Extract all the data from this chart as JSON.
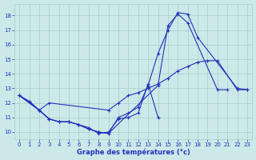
{
  "xlabel": "Graphe des températures (°c)",
  "xlim": [
    -0.5,
    23.5
  ],
  "ylim": [
    9.5,
    18.8
  ],
  "yticks": [
    10,
    11,
    12,
    13,
    14,
    15,
    16,
    17,
    18
  ],
  "xticks": [
    0,
    1,
    2,
    3,
    4,
    5,
    6,
    7,
    8,
    9,
    10,
    11,
    12,
    13,
    14,
    15,
    16,
    17,
    18,
    19,
    20,
    21,
    22,
    23
  ],
  "bg_color": "#cce8e8",
  "grid_color": "#aacccc",
  "line_color": "#2233bb",
  "line_width": 0.8,
  "marker_size": 3.5,
  "series": [
    {
      "x": [
        0,
        1,
        2,
        3,
        4,
        5,
        6,
        7,
        8,
        9,
        14,
        15,
        16,
        17,
        20,
        21
      ],
      "y": [
        12.5,
        12.1,
        11.5,
        10.9,
        10.7,
        10.7,
        10.5,
        10.2,
        10.0,
        9.9,
        13.2,
        17.3,
        18.1,
        17.5,
        12.9,
        12.9
      ]
    },
    {
      "x": [
        0,
        1,
        2,
        3,
        4,
        5,
        6,
        7,
        8,
        9,
        10,
        11,
        12,
        13,
        14,
        15,
        16,
        17,
        18,
        22,
        23
      ],
      "y": [
        12.5,
        12.1,
        11.5,
        10.9,
        10.7,
        10.7,
        10.5,
        10.2,
        10.0,
        9.9,
        11.0,
        11.3,
        11.7,
        13.2,
        15.4,
        17.0,
        18.2,
        18.1,
        16.5,
        13.0,
        12.9
      ]
    },
    {
      "x": [
        0,
        2,
        3,
        9,
        10,
        11,
        12,
        13,
        14,
        15,
        16,
        17,
        18,
        19,
        20,
        22,
        23
      ],
      "y": [
        12.5,
        11.5,
        12.0,
        11.5,
        12.0,
        12.5,
        12.7,
        13.0,
        13.3,
        13.7,
        14.2,
        14.5,
        14.8,
        14.9,
        14.9,
        12.9,
        12.9
      ]
    },
    {
      "x": [
        0,
        2,
        3,
        4,
        5,
        6,
        7,
        8,
        9,
        10,
        11,
        12,
        13,
        14
      ],
      "y": [
        12.5,
        11.5,
        10.9,
        10.7,
        10.7,
        10.5,
        10.3,
        9.9,
        10.0,
        10.9,
        11.0,
        11.3,
        13.3,
        11.0
      ]
    }
  ]
}
